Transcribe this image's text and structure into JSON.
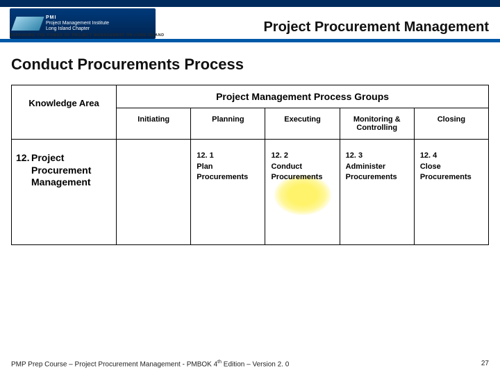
{
  "header": {
    "logo_line1": "PMI",
    "logo_line2": "Project Management Institute",
    "logo_line3": "Long Island Chapter",
    "tagline": "EXPANDING THE POWER OF PROJECT MANAGEMENT ON LONG ISLAND",
    "title": "Project Procurement Management",
    "colors": {
      "top_bar": "#002b5c",
      "rule": "#0058a8",
      "logo_bg": "#003a7a"
    }
  },
  "subtitle": "Conduct Procurements Process",
  "table": {
    "knowledge_area_header": "Knowledge Area",
    "process_groups_header": "Project Management Process Groups",
    "columns": [
      "Initiating",
      "Planning",
      "Executing",
      "Monitoring & Controlling",
      "Closing"
    ],
    "row": {
      "ka_number": "12.",
      "ka_name": "Project Procurement Management",
      "cells": [
        {
          "num": "",
          "text": ""
        },
        {
          "num": "12. 1",
          "text": "Plan Procurements"
        },
        {
          "num": "12. 2",
          "text": "Conduct Procurements",
          "highlight": true,
          "highlight_color": "#fff36b"
        },
        {
          "num": "12. 3",
          "text": "Administer Procurements"
        },
        {
          "num": "12. 4",
          "text": "Close Procurements"
        }
      ]
    },
    "styling": {
      "border_color": "#000000",
      "border_width": 1.5,
      "header_fontsize": 13,
      "colhead_fontsize": 11,
      "cell_fontsize": 11,
      "background": "#ffffff"
    }
  },
  "footer": {
    "left_pre": "PMP Prep Course – Project Procurement Management - PMBOK 4",
    "left_sup": "th",
    "left_post": " Edition – Version 2. 0",
    "page": "27"
  }
}
